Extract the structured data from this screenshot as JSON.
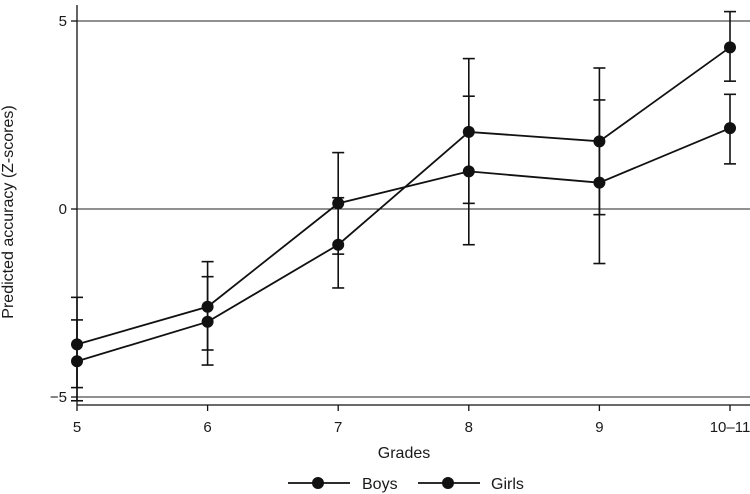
{
  "chart_data": {
    "type": "line",
    "title": "",
    "xlabel": "Grades",
    "ylabel": "Predicted accuracy (Z-scores)",
    "categories": [
      "5",
      "6",
      "7",
      "8",
      "9",
      "10–11"
    ],
    "ylim": [
      -5.3,
      5.2
    ],
    "yticks": [
      -5,
      0,
      5
    ],
    "ytick_labels": [
      "−5",
      "0",
      "5"
    ],
    "grid": "horizontal at ticks",
    "legend_position": "bottom",
    "series": [
      {
        "name": "Boys",
        "values": [
          -4.05,
          -3.0,
          -0.95,
          2.05,
          1.8,
          4.3
        ],
        "ci_low": [
          -5.1,
          -4.15,
          -2.1,
          0.15,
          -0.15,
          3.4
        ],
        "ci_high": [
          -2.95,
          -1.8,
          0.3,
          4.0,
          3.75,
          5.25
        ]
      },
      {
        "name": "Girls",
        "values": [
          -3.6,
          -2.6,
          0.15,
          1.0,
          0.7,
          2.15
        ],
        "ci_low": [
          -4.75,
          -3.75,
          -1.2,
          -0.95,
          -1.45,
          1.2
        ],
        "ci_high": [
          -2.35,
          -1.4,
          1.5,
          3.0,
          2.9,
          3.05
        ]
      }
    ],
    "colors": {
      "line": "#111111",
      "grid": "#222222",
      "text": "#1a1a1a"
    }
  }
}
